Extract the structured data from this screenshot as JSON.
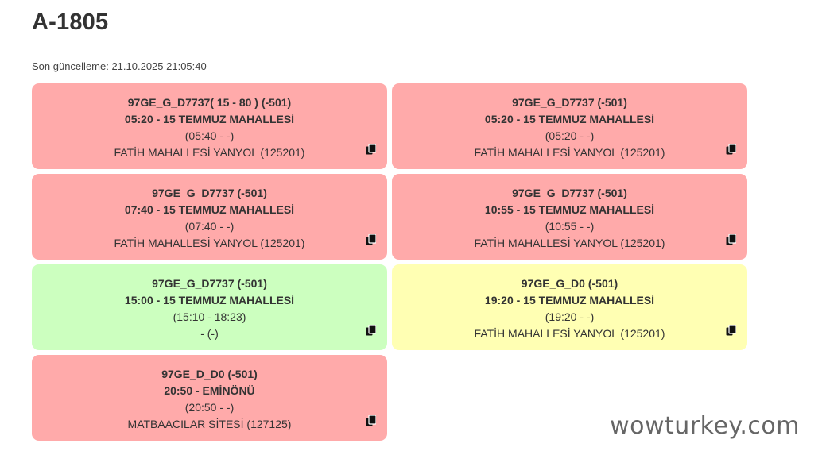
{
  "header": {
    "title": "A-1805",
    "last_update": "Son güncelleme: 21.10.2025 21:05:40"
  },
  "colors": {
    "red": "#ffaaaa",
    "green": "#ccffbf",
    "yellow": "#ffffb3"
  },
  "cards": [
    {
      "status": "red",
      "route": "97GE_G_D7737( 15 - 80 ) (-501)",
      "departure": "05:20 - 15 TEMMUZ MAHALLESİ",
      "times": "(05:40 - -)",
      "stop": "FATİH MAHALLESİ YANYOL (125201)",
      "icon": "copy-icon"
    },
    {
      "status": "red",
      "route": "97GE_G_D7737 (-501)",
      "departure": "05:20 - 15 TEMMUZ MAHALLESİ",
      "times": "(05:20 - -)",
      "stop": "FATİH MAHALLESİ YANYOL (125201)",
      "icon": "copy-icon"
    },
    {
      "status": "red",
      "route": "97GE_G_D7737 (-501)",
      "departure": "07:40 - 15 TEMMUZ MAHALLESİ",
      "times": "(07:40 - -)",
      "stop": "FATİH MAHALLESİ YANYOL (125201)",
      "icon": "copy-icon"
    },
    {
      "status": "red",
      "route": "97GE_G_D7737 (-501)",
      "departure": "10:55 - 15 TEMMUZ MAHALLESİ",
      "times": "(10:55 - -)",
      "stop": "FATİH MAHALLESİ YANYOL (125201)",
      "icon": "copy-icon"
    },
    {
      "status": "green",
      "route": "97GE_G_D7737 (-501)",
      "departure": "15:00 - 15 TEMMUZ MAHALLESİ",
      "times": "(15:10 - 18:23)",
      "stop": "- (-)",
      "icon": "copy-icon"
    },
    {
      "status": "yellow",
      "route": "97GE_G_D0 (-501)",
      "departure": "19:20 - 15 TEMMUZ MAHALLESİ",
      "times": "(19:20 - -)",
      "stop": "FATİH MAHALLESİ YANYOL (125201)",
      "icon": "copy-icon"
    },
    {
      "status": "red",
      "route": "97GE_D_D0 (-501)",
      "departure": "20:50 - EMİNÖNÜ",
      "times": "(20:50 - -)",
      "stop": "MATBAACILAR SİTESİ (127125)",
      "icon": "copy-icon"
    }
  ],
  "watermark": "wowturkey.com"
}
